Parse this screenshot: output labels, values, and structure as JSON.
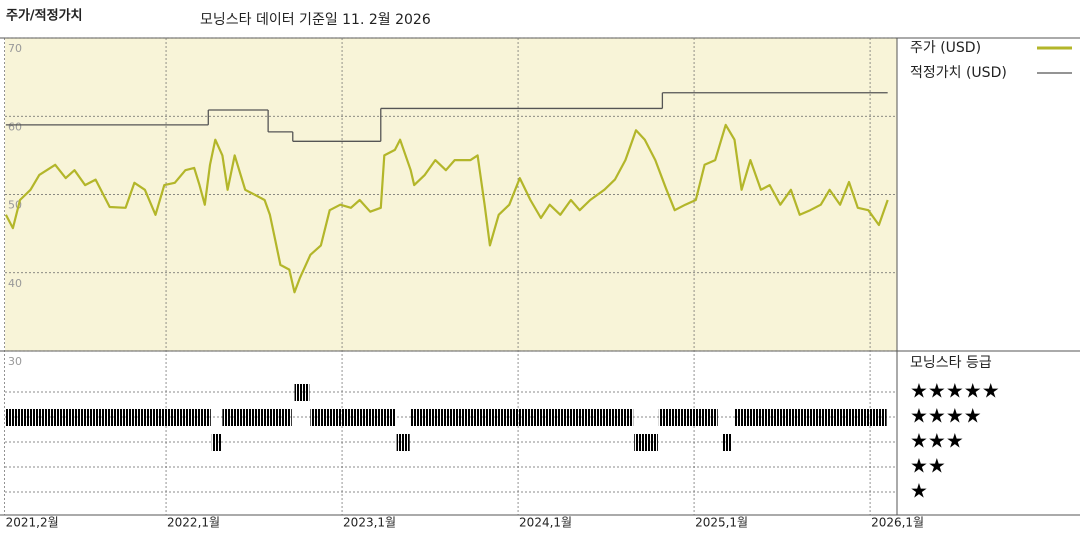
{
  "chart_data": {
    "type": "line",
    "title": "주가/적정가치",
    "subtitle": "모닝스타 데이터 기준일 11. 2월 2026",
    "xlim": [
      2021.085,
      2026.153
    ],
    "xticks": [
      {
        "value": 2021.083,
        "label": "2021,2월"
      },
      {
        "value": 2022.0,
        "label": "2022,1월"
      },
      {
        "value": 2023.0,
        "label": "2023,1월"
      },
      {
        "value": 2024.0,
        "label": "2024,1월"
      },
      {
        "value": 2025.0,
        "label": "2025,1월"
      },
      {
        "value": 2026.0,
        "label": "2026,1월"
      }
    ],
    "ylim": [
      30,
      70
    ],
    "yticks": [
      70,
      60,
      50,
      40,
      30
    ],
    "grid": true,
    "series": [
      {
        "name": "주가 (USD)",
        "color": "#b3b62a",
        "step": false,
        "x": [
          2021.09,
          2021.13,
          2021.17,
          2021.23,
          2021.28,
          2021.37,
          2021.43,
          2021.48,
          2021.54,
          2021.6,
          2021.68,
          2021.77,
          2021.82,
          2021.88,
          2021.94,
          2021.99,
          2022.05,
          2022.11,
          2022.16,
          2022.19,
          2022.22,
          2022.25,
          2022.28,
          2022.32,
          2022.35,
          2022.39,
          2022.45,
          2022.51,
          2022.56,
          2022.59,
          2022.62,
          2022.65,
          2022.7,
          2022.73,
          2022.76,
          2022.82,
          2022.88,
          2022.93,
          2022.99,
          2023.05,
          2023.1,
          2023.16,
          2023.22,
          2023.24,
          2023.3,
          2023.33,
          2023.39,
          2023.41,
          2023.47,
          2023.53,
          2023.59,
          2023.64,
          2023.73,
          2023.77,
          2023.81,
          2023.84,
          2023.89,
          2023.95,
          2024.01,
          2024.07,
          2024.13,
          2024.18,
          2024.24,
          2024.3,
          2024.35,
          2024.41,
          2024.49,
          2024.55,
          2024.61,
          2024.67,
          2024.72,
          2024.78,
          2024.84,
          2024.89,
          2024.95,
          2025.01,
          2025.06,
          2025.12,
          2025.18,
          2025.23,
          2025.27,
          2025.32,
          2025.38,
          2025.43,
          2025.49,
          2025.55,
          2025.6,
          2025.66,
          2025.72,
          2025.77,
          2025.83,
          2025.88,
          2025.93,
          2025.99,
          2026.05,
          2026.1
        ],
        "values": [
          47.4,
          45.7,
          49.3,
          50.6,
          52.5,
          53.8,
          52.1,
          53.1,
          51.2,
          51.9,
          48.4,
          48.3,
          51.5,
          50.6,
          47.4,
          51.2,
          51.5,
          53.1,
          53.4,
          51.2,
          48.7,
          53.8,
          57.0,
          55.0,
          50.6,
          55.0,
          50.6,
          49.9,
          49.3,
          47.4,
          44.2,
          41.0,
          40.4,
          37.5,
          39.3,
          42.3,
          43.5,
          48.0,
          48.7,
          48.3,
          49.3,
          47.8,
          48.3,
          55.0,
          55.7,
          57.0,
          53.1,
          51.2,
          52.5,
          54.4,
          53.1,
          54.4,
          54.4,
          55.0,
          48.7,
          43.5,
          47.4,
          48.7,
          52.1,
          49.3,
          47.0,
          48.7,
          47.4,
          49.3,
          48.0,
          49.3,
          50.6,
          51.9,
          54.4,
          58.2,
          57.0,
          54.4,
          50.8,
          48.0,
          48.7,
          49.3,
          53.8,
          54.4,
          58.9,
          57.0,
          50.6,
          54.4,
          50.6,
          51.2,
          48.7,
          50.6,
          47.4,
          48.0,
          48.7,
          50.6,
          48.7,
          51.6,
          48.3,
          48.0,
          46.1,
          49.3
        ]
      },
      {
        "name": "적정가치 (USD)",
        "color": "#555555",
        "step": true,
        "x": [
          2021.09,
          2022.24,
          2022.58,
          2022.72,
          2023.22,
          2024.82,
          2026.1
        ],
        "values": [
          58.9,
          60.8,
          58.0,
          56.8,
          61.0,
          63.0,
          63.0
        ]
      }
    ],
    "ratings_title": "모닝스타 등급",
    "rating_labels": [
      {
        "stars": 5,
        "label": "★★★★★"
      },
      {
        "stars": 4,
        "label": "★★★★"
      },
      {
        "stars": 3,
        "label": "★★★"
      },
      {
        "stars": 2,
        "label": "★★"
      },
      {
        "stars": 1,
        "label": "★"
      }
    ],
    "ratings": [
      {
        "x0": 2021.09,
        "x1": 2022.26,
        "stars": 4
      },
      {
        "x0": 2022.26,
        "x1": 2022.32,
        "stars": 3
      },
      {
        "x0": 2022.32,
        "x1": 2022.72,
        "stars": 4
      },
      {
        "x0": 2022.73,
        "x1": 2022.82,
        "stars": 5
      },
      {
        "x0": 2022.82,
        "x1": 2023.31,
        "stars": 4
      },
      {
        "x0": 2023.31,
        "x1": 2023.39,
        "stars": 3
      },
      {
        "x0": 2023.39,
        "x1": 2024.66,
        "stars": 4
      },
      {
        "x0": 2024.66,
        "x1": 2024.8,
        "stars": 3
      },
      {
        "x0": 2024.8,
        "x1": 2025.14,
        "stars": 4
      },
      {
        "x0": 2025.16,
        "x1": 2025.22,
        "stars": 3
      },
      {
        "x0": 2025.23,
        "x1": 2026.1,
        "stars": 4
      }
    ],
    "five_star_color": "#2e8b6e",
    "rating_color": "#222222"
  }
}
